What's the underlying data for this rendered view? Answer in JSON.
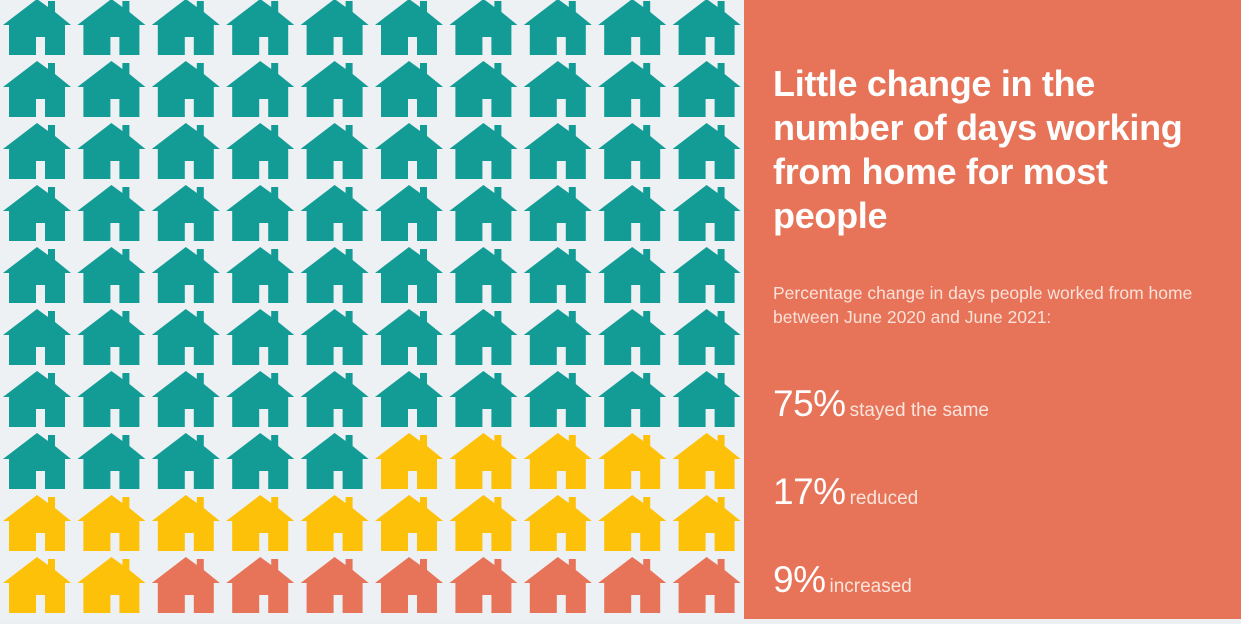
{
  "title": "Little change in the number of days working from home for most people",
  "subtitle": "Percentage change in days people worked from home between June 2020 and June 2021:",
  "colors": {
    "stayed": "#129c95",
    "reduced": "#fec10a",
    "increased": "#e77458",
    "panel": "#e77458",
    "background": "#eef1f4"
  },
  "chart_data": {
    "type": "waffle",
    "categories": [
      "stayed the same",
      "reduced",
      "increased"
    ],
    "values": [
      75,
      17,
      9
    ],
    "unit": "%",
    "icon": "house-icon"
  },
  "stats": [
    {
      "value": "75%",
      "label": "stayed the same"
    },
    {
      "value": "17%",
      "label": "reduced"
    },
    {
      "value": "9%",
      "label": "increased"
    }
  ]
}
